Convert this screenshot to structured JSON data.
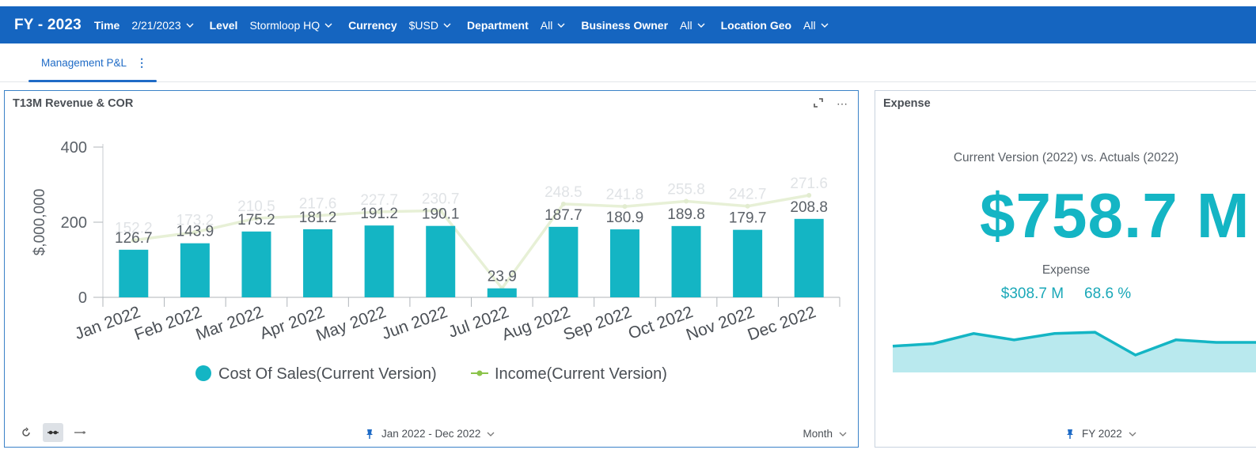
{
  "header": {
    "title": "FY - 2023",
    "filters": [
      {
        "label": "Time",
        "value": "2/21/2023"
      },
      {
        "label": "Level",
        "value": "Stormloop HQ"
      },
      {
        "label": "Currency",
        "value": "$USD"
      },
      {
        "label": "Department",
        "value": "All"
      },
      {
        "label": "Business Owner",
        "value": "All"
      },
      {
        "label": "Location Geo",
        "value": "All"
      }
    ],
    "accent": "#1565c0"
  },
  "tabs": [
    {
      "label": "Management P&L",
      "active": true
    }
  ],
  "revenue_card": {
    "title": "T13M Revenue & COR",
    "footer": {
      "date_range": "Jan 2022 - Dec 2022",
      "granularity": "Month"
    }
  },
  "chart_data": {
    "type": "bar",
    "ylabel": "$,000,000",
    "ylim": [
      0,
      400
    ],
    "yticks": [
      0,
      200,
      400
    ],
    "categories": [
      "Jan 2022",
      "Feb 2022",
      "Mar 2022",
      "Apr 2022",
      "May 2022",
      "Jun 2022",
      "Jul 2022",
      "Aug 2022",
      "Sep 2022",
      "Oct 2022",
      "Nov 2022",
      "Dec 2022"
    ],
    "series": [
      {
        "name": "Cost Of Sales(Current Version)",
        "kind": "bar",
        "color": "#14b5c4",
        "values": [
          126.7,
          143.9,
          175.2,
          181.2,
          191.2,
          190.1,
          23.9,
          187.7,
          180.9,
          189.8,
          179.7,
          208.8
        ]
      },
      {
        "name": "Income(Current Version)",
        "kind": "line",
        "color": "#8bc34a",
        "values": [
          152.2,
          173.2,
          210.5,
          217.6,
          227.7,
          230.7,
          23.9,
          248.5,
          241.8,
          255.8,
          242.7,
          271.6
        ]
      }
    ],
    "legend": "bottom"
  },
  "expense_card": {
    "title": "Expense",
    "subtitle": "Current Version (2022) vs. Actuals (2022)",
    "kpi": "$758.7 M",
    "label": "Expense",
    "value": "$308.7 M",
    "percent": "68.6 %",
    "period": "FY 2022",
    "sparkline": [
      0.38,
      0.36,
      0.28,
      0.33,
      0.28,
      0.27,
      0.45,
      0.33,
      0.35,
      0.35
    ],
    "color": "#14b5c4"
  }
}
